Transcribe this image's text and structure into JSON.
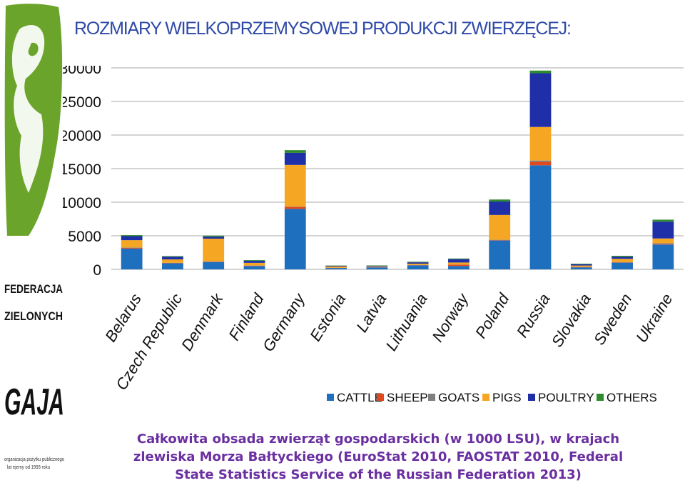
{
  "header": {
    "title": "ROZMIARY WIELKOPRZEMYSOWEJ PRODUKCJI ZWIERZĘCEJ:"
  },
  "sidebar": {
    "org_name_line1": "FEDERACJA",
    "org_name_line2": "ZIELONYCH",
    "org_logo_text": "GAJA",
    "org_note_line1": "organizacja pożytku publicznego",
    "org_note_line2": "lat ejemy od 1993 roku",
    "logo_green": "#6aa42a"
  },
  "caption": {
    "line1": "Całkowita obsada zwierząt gospodarskich (w 1000 LSU), w krajach",
    "line2": "zlewiska Morza Bałtyckiego (EuroStat 2010, FAOSTAT 2010, Federal",
    "line3": "State Statistics Service of the Russian Federation 2013)"
  },
  "chart_data": {
    "type": "bar",
    "stacked": true,
    "grid": true,
    "legend_position": "bottom-right",
    "categories": [
      "Belarus",
      "Czech Republic",
      "Denmark",
      "Finland",
      "Germany",
      "Estonia",
      "Latvia",
      "Lithuania",
      "Norway",
      "Poland",
      "Russia",
      "Slovakia",
      "Sweden",
      "Ukraine"
    ],
    "ylim": [
      0,
      30000
    ],
    "yticks": [
      0,
      5000,
      10000,
      15000,
      20000,
      25000,
      30000
    ],
    "series": [
      {
        "name": "CATTLE",
        "color": "#1f6fbf",
        "values": [
          3100,
          900,
          1100,
          500,
          9000,
          200,
          300,
          600,
          500,
          4300,
          15500,
          300,
          1000,
          3700
        ]
      },
      {
        "name": "SHEEP",
        "color": "#e2481b",
        "values": [
          100,
          50,
          50,
          50,
          300,
          20,
          30,
          30,
          200,
          50,
          500,
          50,
          50,
          100
        ]
      },
      {
        "name": "GOATS",
        "color": "#7f7f7f",
        "values": [
          50,
          30,
          20,
          20,
          50,
          10,
          10,
          20,
          20,
          50,
          200,
          20,
          20,
          100
        ]
      },
      {
        "name": "PIGS",
        "color": "#f5a623",
        "values": [
          1100,
          500,
          3400,
          400,
          6200,
          200,
          100,
          200,
          300,
          3700,
          5000,
          200,
          500,
          700
        ]
      },
      {
        "name": "POULTRY",
        "color": "#1f2fa8",
        "values": [
          600,
          400,
          300,
          300,
          1800,
          100,
          100,
          200,
          500,
          2000,
          8000,
          200,
          300,
          2500
        ]
      },
      {
        "name": "OTHERS",
        "color": "#2e8b2e",
        "values": [
          150,
          100,
          150,
          100,
          400,
          40,
          50,
          80,
          100,
          300,
          400,
          80,
          150,
          300
        ]
      }
    ]
  }
}
